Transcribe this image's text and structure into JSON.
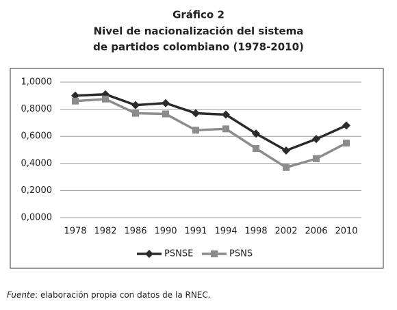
{
  "chart_data": {
    "type": "line",
    "title": "Gráfico 2",
    "subtitle": [
      "Nivel de nacionalización del sistema",
      "de partidos colombiano (1978-2010)"
    ],
    "categories": [
      "1978",
      "1982",
      "1986",
      "1990",
      "1991",
      "1994",
      "1998",
      "2002",
      "2006",
      "2010"
    ],
    "series": [
      {
        "name": "PSNSE",
        "color": "#2b2b2b",
        "marker": "diamond",
        "values": [
          0.9,
          0.91,
          0.83,
          0.845,
          0.77,
          0.76,
          0.62,
          0.495,
          0.58,
          0.68
        ]
      },
      {
        "name": "PSNS",
        "color": "#8c8c8c",
        "marker": "square",
        "values": [
          0.86,
          0.875,
          0.77,
          0.765,
          0.645,
          0.655,
          0.51,
          0.37,
          0.435,
          0.55
        ]
      }
    ],
    "ylim": [
      0,
      1
    ],
    "yticks": [
      {
        "value": 0,
        "label": "0,0000"
      },
      {
        "value": 0.2,
        "label": "0,2000"
      },
      {
        "value": 0.4,
        "label": "0,4000"
      },
      {
        "value": 0.6,
        "label": "0,6000"
      },
      {
        "value": 0.8,
        "label": "0,8000"
      },
      {
        "value": 1,
        "label": "1,0000"
      }
    ],
    "grid": true,
    "legend": "bottom",
    "source_label": "Fuente",
    "source_text": ": elaboración propia con datos de la RNEC."
  }
}
